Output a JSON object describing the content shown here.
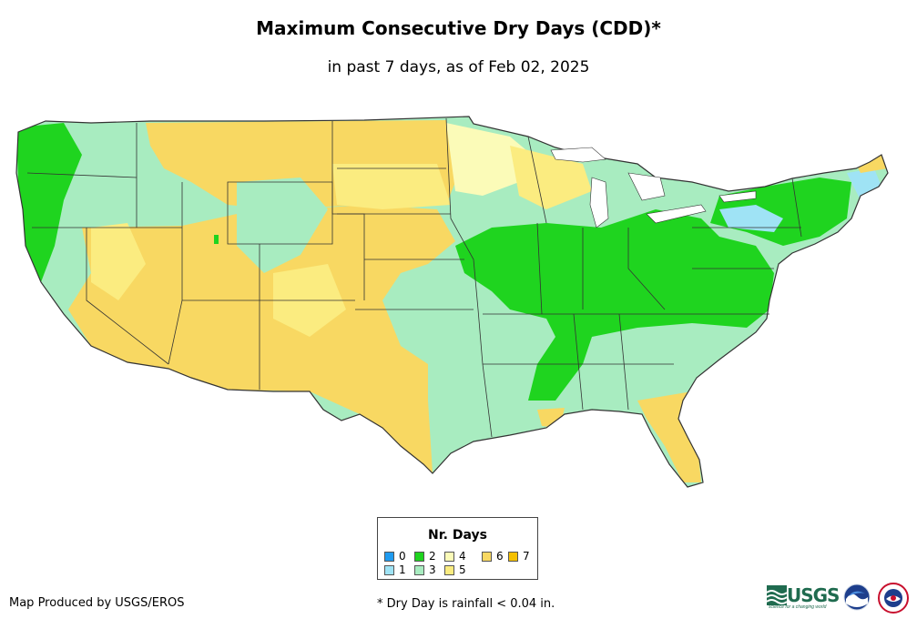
{
  "header": {
    "title": "Maximum Consecutive Dry Days (CDD)*",
    "subtitle": "in past 7 days, as of Feb 02, 2025"
  },
  "colors": {
    "d0": "#1f9bf0",
    "d1": "#9fe3f5",
    "d2": "#1fd41f",
    "d3": "#a8ecc0",
    "d4": "#fbfbb8",
    "d5": "#fbec80",
    "d6": "#f8d862",
    "d7": "#f5c000",
    "border": "#333333"
  },
  "legend": {
    "title": "Nr. Days",
    "items": [
      {
        "label": "0",
        "color": "#1f9bf0"
      },
      {
        "label": "1",
        "color": "#9fe3f5"
      },
      {
        "label": "2",
        "color": "#1fd41f"
      },
      {
        "label": "3",
        "color": "#a8ecc0"
      },
      {
        "label": "4",
        "color": "#fbfbb8"
      },
      {
        "label": "5",
        "color": "#fbec80"
      },
      {
        "label": "6",
        "color": "#f8d862"
      },
      {
        "label": "7",
        "color": "#f5c000"
      }
    ]
  },
  "footer": {
    "credit": "Map Produced by USGS/EROS",
    "note": "* Dry Day is rainfall < 0.04 in."
  },
  "logos": {
    "usgs_text": "USGS",
    "usgs_tagline": "science for a changing world"
  }
}
